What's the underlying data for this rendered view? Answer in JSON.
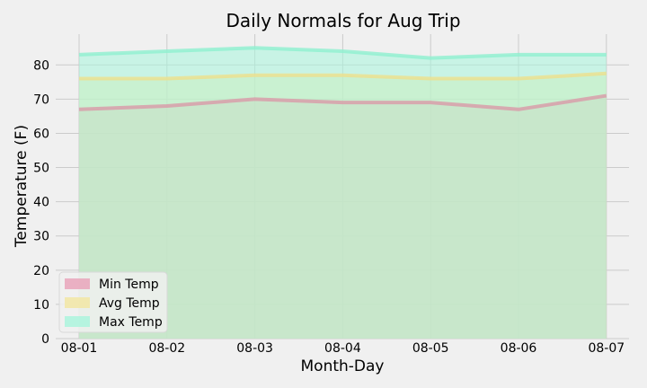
{
  "chart_data": {
    "type": "area",
    "title": "Daily Normals for Aug Trip",
    "xlabel": "Month-Day",
    "ylabel": "Temperature (F)",
    "categories": [
      "08-01",
      "08-02",
      "08-03",
      "08-04",
      "08-05",
      "08-06",
      "08-07"
    ],
    "ylim": [
      0,
      89
    ],
    "yticks": [
      0,
      10,
      20,
      30,
      40,
      50,
      60,
      70,
      80
    ],
    "stacked": false,
    "grid": true,
    "legend_position": "lower-left",
    "series": [
      {
        "name": "Min Temp",
        "color": "#e8a0b8",
        "line_color": "#d99aa8",
        "values": [
          67,
          68,
          70,
          69,
          69,
          67,
          71
        ]
      },
      {
        "name": "Avg Temp",
        "color": "#f2e6a0",
        "line_color": "#eee08c",
        "values": [
          76,
          76,
          77,
          77,
          76,
          76,
          77.5
        ]
      },
      {
        "name": "Max Temp",
        "color": "#a8f5dc",
        "line_color": "#8ef0d0",
        "values": [
          83,
          84,
          85,
          84,
          82,
          83,
          83
        ]
      }
    ]
  }
}
